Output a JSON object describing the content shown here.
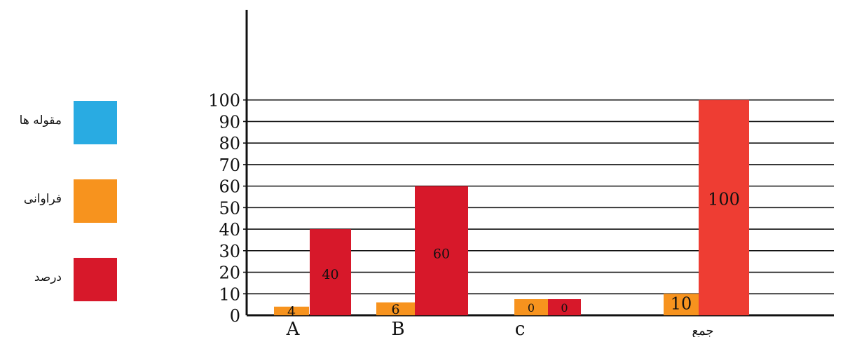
{
  "chart_data": {
    "type": "bar",
    "categories": [
      "A",
      "B",
      "c",
      "جمع"
    ],
    "series": [
      {
        "name": "فراوانی",
        "color": "#f7931e",
        "values": [
          4,
          6,
          0,
          10
        ]
      },
      {
        "name": "درصد",
        "color": "#d7182a",
        "values": [
          40,
          60,
          0,
          100
        ]
      }
    ],
    "y_ticks": [
      0,
      10,
      20,
      30,
      40,
      50,
      60,
      70,
      80,
      90,
      100
    ],
    "ylim": [
      0,
      100
    ],
    "grid": true,
    "legend_position": "left",
    "legend": [
      {
        "label": "مقوله ها",
        "color": "#29abe2"
      },
      {
        "label": "فراوانی",
        "color": "#f7931e"
      },
      {
        "label": "درصد",
        "color": "#d7182a"
      }
    ],
    "total_bar_color": "#ee3d33",
    "title": "",
    "xlabel": "",
    "ylabel": ""
  }
}
